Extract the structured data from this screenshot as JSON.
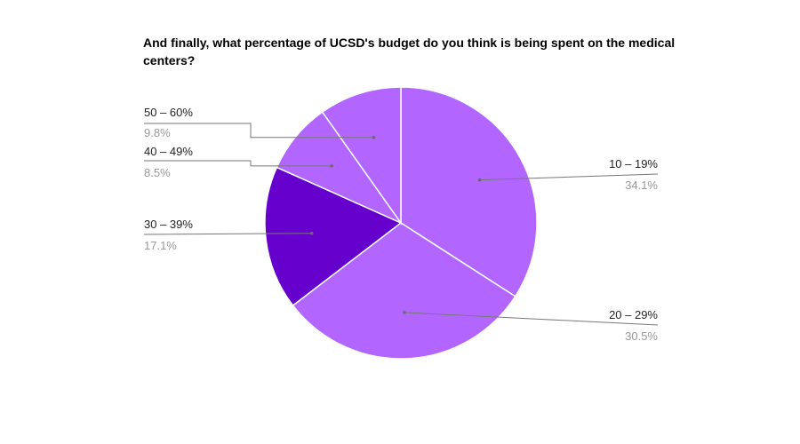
{
  "chart_data": {
    "type": "pie",
    "title": "And finally, what percentage of UCSD's budget do you think is being spent on the medical centers?",
    "categories": [
      "10 – 19%",
      "20 – 29%",
      "30 – 39%",
      "40 – 49%",
      "50 – 60%"
    ],
    "values": [
      34.1,
      30.5,
      17.1,
      8.5,
      9.8
    ],
    "value_labels": [
      "34.1%",
      "30.5%",
      "17.1%",
      "8.5%",
      "9.8%"
    ],
    "colors": [
      "#b266ff",
      "#b266ff",
      "#6600cc",
      "#b266ff",
      "#b266ff"
    ],
    "legend": "none"
  }
}
